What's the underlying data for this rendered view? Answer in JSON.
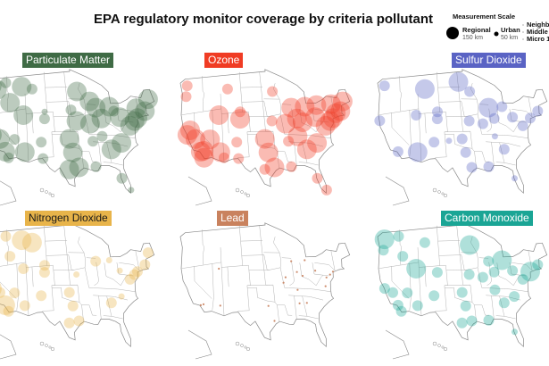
{
  "title": "EPA regulatory monitor coverage by criteria pollutant",
  "legend": {
    "title": "Measurement Scale",
    "items": [
      {
        "scale": "regional",
        "label": "Regional",
        "sub": "150 km"
      },
      {
        "scale": "urban",
        "label": "Urban",
        "sub": "50 km"
      },
      {
        "scale": "neighborhood",
        "label": "Neighb"
      },
      {
        "scale": "middle",
        "label": "Middle"
      },
      {
        "scale": "micro",
        "label": "Micro 1"
      }
    ]
  },
  "chart_data": {
    "type": "scatter",
    "scales": [
      "regional",
      "urban",
      "neighborhood",
      "middle",
      "micro"
    ],
    "panels": [
      {
        "name": "Particulate Matter",
        "color": "#3f6b45",
        "text_color": "#ffffff",
        "monitors": [
          [
            -122.3,
            47.6,
            "regional"
          ],
          [
            -122.7,
            45.5,
            "urban"
          ],
          [
            -120.5,
            46.6,
            "regional"
          ],
          [
            -117.4,
            47.7,
            "urban"
          ],
          [
            -116.2,
            43.6,
            "regional"
          ],
          [
            -112,
            46.5,
            "regional"
          ],
          [
            -108.5,
            45.8,
            "urban"
          ],
          [
            -111.9,
            40.8,
            "regional"
          ],
          [
            -105,
            39.7,
            "urban"
          ],
          [
            -104.8,
            41.1,
            "neighborhood"
          ],
          [
            -122.4,
            37.8,
            "regional"
          ],
          [
            -119.8,
            36.7,
            "regional"
          ],
          [
            -118.2,
            34,
            "regional"
          ],
          [
            -117.2,
            32.7,
            "urban"
          ],
          [
            -112,
            33.4,
            "regional"
          ],
          [
            -115.1,
            36.2,
            "urban"
          ],
          [
            -106.6,
            35.1,
            "urban"
          ],
          [
            -106.4,
            31.8,
            "urban"
          ],
          [
            -98.5,
            29.4,
            "regional"
          ],
          [
            -95.4,
            29.8,
            "regional"
          ],
          [
            -96.8,
            32.8,
            "regional"
          ],
          [
            -97.5,
            35.5,
            "regional"
          ],
          [
            -94.6,
            39.1,
            "regional"
          ],
          [
            -96,
            41.3,
            "urban"
          ],
          [
            -93.3,
            45,
            "regional"
          ],
          [
            -90.2,
            38.6,
            "regional"
          ],
          [
            -87.6,
            41.9,
            "regional"
          ],
          [
            -89.4,
            43.1,
            "regional"
          ],
          [
            -86.2,
            39.8,
            "regional"
          ],
          [
            -83,
            42.3,
            "regional"
          ],
          [
            -81.7,
            41.5,
            "urban"
          ],
          [
            -80,
            40.4,
            "regional"
          ],
          [
            -84.4,
            33.7,
            "regional"
          ],
          [
            -86.8,
            36.2,
            "urban"
          ],
          [
            -90,
            35.1,
            "urban"
          ],
          [
            -90.1,
            30,
            "urban"
          ],
          [
            -82.5,
            28,
            "urban"
          ],
          [
            -80.2,
            25.8,
            "neighborhood"
          ],
          [
            -80.8,
            35.2,
            "regional"
          ],
          [
            -77,
            38.9,
            "regional"
          ],
          [
            -75.2,
            40,
            "regional"
          ],
          [
            -74,
            40.7,
            "regional"
          ],
          [
            -71,
            42.4,
            "regional"
          ],
          [
            -69,
            45,
            "regional"
          ],
          [
            -73.8,
            42.7,
            "regional"
          ]
        ]
      },
      {
        "name": "Ozone",
        "color": "#f03c24",
        "text_color": "#ffffff",
        "monitors": [
          [
            -122.3,
            47.6,
            "urban"
          ],
          [
            -122.7,
            45.5,
            "urban"
          ],
          [
            -121.5,
            38.6,
            "regional"
          ],
          [
            -122.4,
            37.8,
            "regional"
          ],
          [
            -119.8,
            36.7,
            "regional"
          ],
          [
            -118.2,
            34,
            "regional"
          ],
          [
            -117.3,
            34.1,
            "regional"
          ],
          [
            -117.2,
            32.7,
            "regional"
          ],
          [
            -115.1,
            36.2,
            "regional"
          ],
          [
            -112,
            33.4,
            "regional"
          ],
          [
            -110.9,
            32.2,
            "urban"
          ],
          [
            -111.9,
            40.8,
            "regional"
          ],
          [
            -105,
            39.7,
            "regional"
          ],
          [
            -108.5,
            45.8,
            "urban"
          ],
          [
            -106.6,
            35.1,
            "urban"
          ],
          [
            -104.8,
            41.1,
            "urban"
          ],
          [
            -106.4,
            31.8,
            "urban"
          ],
          [
            -96.8,
            32.8,
            "regional"
          ],
          [
            -95.4,
            29.8,
            "regional"
          ],
          [
            -98.5,
            29.4,
            "urban"
          ],
          [
            -97.5,
            35.5,
            "regional"
          ],
          [
            -94.6,
            39.1,
            "urban"
          ],
          [
            -93.3,
            45,
            "urban"
          ],
          [
            -90.2,
            38.6,
            "regional"
          ],
          [
            -87.6,
            41.9,
            "regional"
          ],
          [
            -86.2,
            39.8,
            "regional"
          ],
          [
            -83,
            42.3,
            "regional"
          ],
          [
            -84.5,
            39.1,
            "regional"
          ],
          [
            -80,
            40.4,
            "regional"
          ],
          [
            -84.4,
            33.7,
            "regional"
          ],
          [
            -86.8,
            36.2,
            "regional"
          ],
          [
            -90,
            35.1,
            "urban"
          ],
          [
            -90.1,
            30,
            "urban"
          ],
          [
            -82.5,
            28,
            "urban"
          ],
          [
            -80.2,
            25.8,
            "urban"
          ],
          [
            -80.8,
            35.2,
            "regional"
          ],
          [
            -77,
            38.9,
            "regional"
          ],
          [
            -75.2,
            40,
            "regional"
          ],
          [
            -74,
            40.7,
            "regional"
          ],
          [
            -71,
            42.4,
            "regional"
          ],
          [
            -72.7,
            41.8,
            "regional"
          ],
          [
            -69.5,
            44.5,
            "regional"
          ],
          [
            -73.8,
            43.5,
            "regional"
          ],
          [
            -78.9,
            42.9,
            "regional"
          ]
        ]
      },
      {
        "name": "Sulfur Dioxide",
        "color": "#5a63c4",
        "text_color": "#ffffff",
        "monitors": [
          [
            -122.3,
            47.6,
            "urban"
          ],
          [
            -124,
            40.8,
            "urban"
          ],
          [
            -118.2,
            34,
            "urban"
          ],
          [
            -112,
            33.4,
            "regional"
          ],
          [
            -111.9,
            40.8,
            "urban"
          ],
          [
            -108.5,
            45.8,
            "regional"
          ],
          [
            -105,
            39.7,
            "urban"
          ],
          [
            -104.8,
            41.1,
            "urban"
          ],
          [
            -106.6,
            35.1,
            "urban"
          ],
          [
            -101.8,
            35.2,
            "neighborhood"
          ],
          [
            -96.8,
            32.8,
            "urban"
          ],
          [
            -95.4,
            29.8,
            "urban"
          ],
          [
            -97.5,
            35.5,
            "urban"
          ],
          [
            -94.6,
            39.1,
            "urban"
          ],
          [
            -93.3,
            45,
            "urban"
          ],
          [
            -96.8,
            46.9,
            "regional"
          ],
          [
            -90.2,
            38.6,
            "urban"
          ],
          [
            -87.6,
            41.9,
            "regional"
          ],
          [
            -86.2,
            39.8,
            "urban"
          ],
          [
            -83,
            42.3,
            "urban"
          ],
          [
            -80,
            40.4,
            "urban"
          ],
          [
            -84.4,
            33.7,
            "urban"
          ],
          [
            -86.8,
            36.2,
            "neighborhood"
          ],
          [
            -90.1,
            30,
            "urban"
          ],
          [
            -82.5,
            28,
            "neighborhood"
          ],
          [
            -77,
            38.9,
            "urban"
          ],
          [
            -74,
            40.7,
            "urban"
          ],
          [
            -71,
            42.4,
            "urban"
          ]
        ]
      },
      {
        "name": "Nitrogen Dioxide",
        "color": "#e8b44a",
        "text_color": "#1a1a1a",
        "monitors": [
          [
            -122.3,
            47.6,
            "urban"
          ],
          [
            -122.7,
            45.5,
            "urban"
          ],
          [
            -117.4,
            47.7,
            "urban"
          ],
          [
            -116.2,
            43.6,
            "urban"
          ],
          [
            -122.4,
            37.8,
            "regional"
          ],
          [
            -119.8,
            36.7,
            "urban"
          ],
          [
            -118.2,
            34,
            "regional"
          ],
          [
            -117.2,
            32.7,
            "urban"
          ],
          [
            -112,
            33.4,
            "urban"
          ],
          [
            -115.1,
            36.2,
            "urban"
          ],
          [
            -111.9,
            40.8,
            "urban"
          ],
          [
            -105,
            39.7,
            "urban"
          ],
          [
            -108.5,
            45.8,
            "regional"
          ],
          [
            -112,
            46.5,
            "regional"
          ],
          [
            -106.6,
            35.1,
            "urban"
          ],
          [
            -104.8,
            41.1,
            "urban"
          ],
          [
            -96.8,
            32.8,
            "urban"
          ],
          [
            -95.4,
            29.8,
            "urban"
          ],
          [
            -98.5,
            29.4,
            "urban"
          ],
          [
            -97.5,
            35.5,
            "urban"
          ],
          [
            -94.6,
            39.1,
            "neighborhood"
          ],
          [
            -87.6,
            41.9,
            "urban"
          ],
          [
            -83,
            42.3,
            "neighborhood"
          ],
          [
            -80,
            40.4,
            "neighborhood"
          ],
          [
            -84.4,
            33.7,
            "urban"
          ],
          [
            -80.8,
            35.2,
            "neighborhood"
          ],
          [
            -77,
            38.9,
            "urban"
          ],
          [
            -75.2,
            40,
            "urban"
          ],
          [
            -74,
            40.7,
            "urban"
          ],
          [
            -71,
            42.4,
            "urban"
          ],
          [
            -69,
            45,
            "urban"
          ]
        ]
      },
      {
        "name": "Lead",
        "color": "#c9825e",
        "text_color": "#ffffff",
        "monitors": [
          [
            -118.2,
            34,
            "micro"
          ],
          [
            -117.3,
            34.1,
            "micro"
          ],
          [
            -112,
            33.4,
            "micro"
          ],
          [
            -111.9,
            40.8,
            "micro"
          ],
          [
            -90.2,
            38.6,
            "micro"
          ],
          [
            -91.1,
            37.5,
            "micro"
          ],
          [
            -87.6,
            41.9,
            "micro"
          ],
          [
            -86.2,
            39.8,
            "micro"
          ],
          [
            -84.5,
            39.1,
            "micro"
          ],
          [
            -83,
            42.3,
            "micro"
          ],
          [
            -80,
            40.4,
            "micro"
          ],
          [
            -84.4,
            33.7,
            "micro"
          ],
          [
            -86.8,
            33.5,
            "micro"
          ],
          [
            -95.4,
            29.8,
            "micro"
          ],
          [
            -96.8,
            32.8,
            "micro"
          ],
          [
            -75.2,
            40,
            "micro"
          ],
          [
            -74,
            40.7,
            "micro"
          ],
          [
            -76.6,
            39.3,
            "micro"
          ],
          [
            -77.4,
            37.5,
            "micro"
          ],
          [
            -86.8,
            36.2,
            "micro"
          ]
        ]
      },
      {
        "name": "Carbon Monoxide",
        "color": "#1aa595",
        "text_color": "#ffffff",
        "monitors": [
          [
            -122.3,
            47.6,
            "regional"
          ],
          [
            -122.7,
            45.5,
            "urban"
          ],
          [
            -117.4,
            47.7,
            "urban"
          ],
          [
            -116.2,
            43.6,
            "urban"
          ],
          [
            -122.4,
            37.8,
            "urban"
          ],
          [
            -119.8,
            36.7,
            "urban"
          ],
          [
            -118.2,
            34,
            "urban"
          ],
          [
            -117.2,
            32.7,
            "urban"
          ],
          [
            -112,
            33.4,
            "urban"
          ],
          [
            -115.1,
            36.2,
            "urban"
          ],
          [
            -111.9,
            40.8,
            "regional"
          ],
          [
            -105,
            39.7,
            "urban"
          ],
          [
            -108.5,
            45.8,
            "urban"
          ],
          [
            -106.6,
            35.1,
            "urban"
          ],
          [
            -96.8,
            32.8,
            "urban"
          ],
          [
            -95.4,
            29.8,
            "urban"
          ],
          [
            -98.5,
            29.4,
            "urban"
          ],
          [
            -97.5,
            35.5,
            "urban"
          ],
          [
            -94.6,
            39.1,
            "urban"
          ],
          [
            -93.3,
            45,
            "regional"
          ],
          [
            -90.2,
            38.6,
            "urban"
          ],
          [
            -87.6,
            41.9,
            "urban"
          ],
          [
            -86.2,
            39.8,
            "urban"
          ],
          [
            -83,
            42.3,
            "regional"
          ],
          [
            -80,
            40.4,
            "urban"
          ],
          [
            -84.4,
            33.7,
            "urban"
          ],
          [
            -86.8,
            36.2,
            "urban"
          ],
          [
            -90.1,
            30,
            "urban"
          ],
          [
            -82.5,
            28,
            "neighborhood"
          ],
          [
            -80.8,
            35.2,
            "urban"
          ],
          [
            -77,
            38.9,
            "urban"
          ],
          [
            -74,
            40.7,
            "regional"
          ],
          [
            -71,
            42.4,
            "urban"
          ]
        ]
      }
    ]
  }
}
